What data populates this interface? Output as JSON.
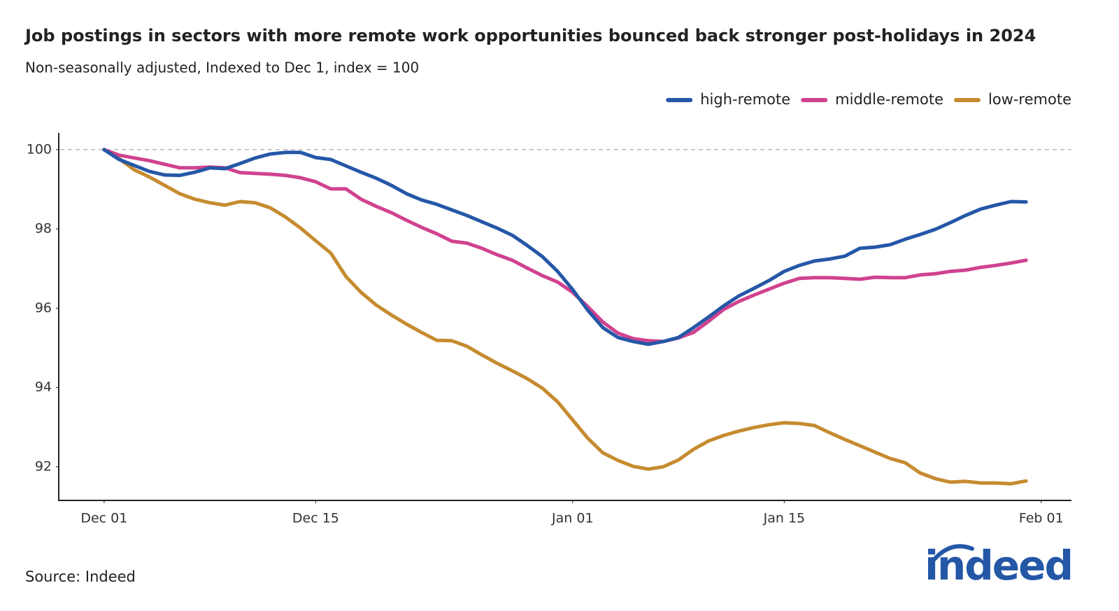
{
  "chart_data": {
    "type": "line",
    "title": "Job postings in sectors with more remote work opportunities bounced back stronger post-holidays in 2024",
    "subtitle": "Non-seasonally adjusted, Indexed to Dec 1, index = 100",
    "source": "Source: Indeed",
    "logo": "indeed",
    "x": [
      0,
      1,
      2,
      3,
      4,
      5,
      6,
      7,
      8,
      9,
      10,
      11,
      12,
      13,
      14,
      15,
      16,
      17,
      18,
      19,
      20,
      21,
      22,
      23,
      24,
      25,
      26,
      27,
      28,
      29,
      30,
      31,
      32,
      33,
      34,
      35,
      36,
      37,
      38,
      39,
      40,
      41,
      42,
      43,
      44,
      45,
      46,
      47,
      48,
      49,
      50,
      51,
      52,
      53,
      54,
      55,
      56,
      57,
      58,
      59,
      60,
      61
    ],
    "xlim": [
      -3,
      64
    ],
    "xticks": [
      {
        "value": 0,
        "label": "Dec 01"
      },
      {
        "value": 14,
        "label": "Dec 15"
      },
      {
        "value": 31,
        "label": "Jan 01"
      },
      {
        "value": 45,
        "label": "Jan 15"
      },
      {
        "value": 62,
        "label": "Feb 01"
      }
    ],
    "ylim": [
      91.15,
      100.42
    ],
    "yticks": [
      92,
      94,
      96,
      98,
      100
    ],
    "reference_line": 100,
    "legend": "top-right",
    "series": [
      {
        "name": "high-remote",
        "color": "#2557a7",
        "values": [
          100,
          99.75,
          99.6,
          99.45,
          99.36,
          99.35,
          99.43,
          99.54,
          99.52,
          99.65,
          99.79,
          99.89,
          99.93,
          99.93,
          99.8,
          99.75,
          99.59,
          99.43,
          99.28,
          99.1,
          98.89,
          98.73,
          98.62,
          98.48,
          98.34,
          98.18,
          98.02,
          97.84,
          97.58,
          97.3,
          96.93,
          96.47,
          95.95,
          95.51,
          95.26,
          95.16,
          95.09,
          95.16,
          95.26,
          95.51,
          95.78,
          96.06,
          96.31,
          96.5,
          96.7,
          96.93,
          97.08,
          97.19,
          97.24,
          97.31,
          97.51,
          97.54,
          97.6,
          97.74,
          97.86,
          97.99,
          98.16,
          98.34,
          98.5,
          98.6,
          98.69,
          98.68
        ]
      },
      {
        "name": "middle-remote",
        "color": "#d0428f",
        "values": [
          100,
          99.86,
          99.79,
          99.72,
          99.63,
          99.54,
          99.54,
          99.56,
          99.54,
          99.42,
          99.4,
          99.38,
          99.35,
          99.29,
          99.19,
          99.01,
          99.01,
          98.75,
          98.57,
          98.41,
          98.22,
          98.04,
          97.88,
          97.69,
          97.64,
          97.51,
          97.35,
          97.21,
          97.01,
          96.82,
          96.66,
          96.4,
          96.04,
          95.65,
          95.37,
          95.23,
          95.18,
          95.16,
          95.25,
          95.39,
          95.67,
          95.97,
          96.17,
          96.33,
          96.48,
          96.63,
          96.75,
          96.77,
          96.77,
          96.75,
          96.73,
          96.78,
          96.77,
          96.77,
          96.84,
          96.87,
          96.93,
          96.96,
          97.03,
          97.08,
          97.14,
          97.21
        ]
      },
      {
        "name": "low-remote",
        "color": "#c68b30",
        "values": [
          100,
          99.77,
          99.49,
          99.31,
          99.1,
          98.89,
          98.75,
          98.66,
          98.6,
          98.69,
          98.66,
          98.53,
          98.3,
          98.02,
          97.7,
          97.39,
          96.8,
          96.4,
          96.08,
          95.83,
          95.6,
          95.39,
          95.19,
          95.18,
          95.04,
          94.82,
          94.61,
          94.42,
          94.22,
          93.98,
          93.64,
          93.18,
          92.72,
          92.35,
          92.16,
          92.01,
          91.94,
          92.0,
          92.17,
          92.44,
          92.65,
          92.79,
          92.9,
          92.99,
          93.06,
          93.11,
          93.09,
          93.04,
          92.86,
          92.69,
          92.53,
          92.37,
          92.21,
          92.1,
          91.84,
          91.7,
          91.61,
          91.63,
          91.59,
          91.59,
          91.57,
          91.64
        ]
      }
    ]
  }
}
